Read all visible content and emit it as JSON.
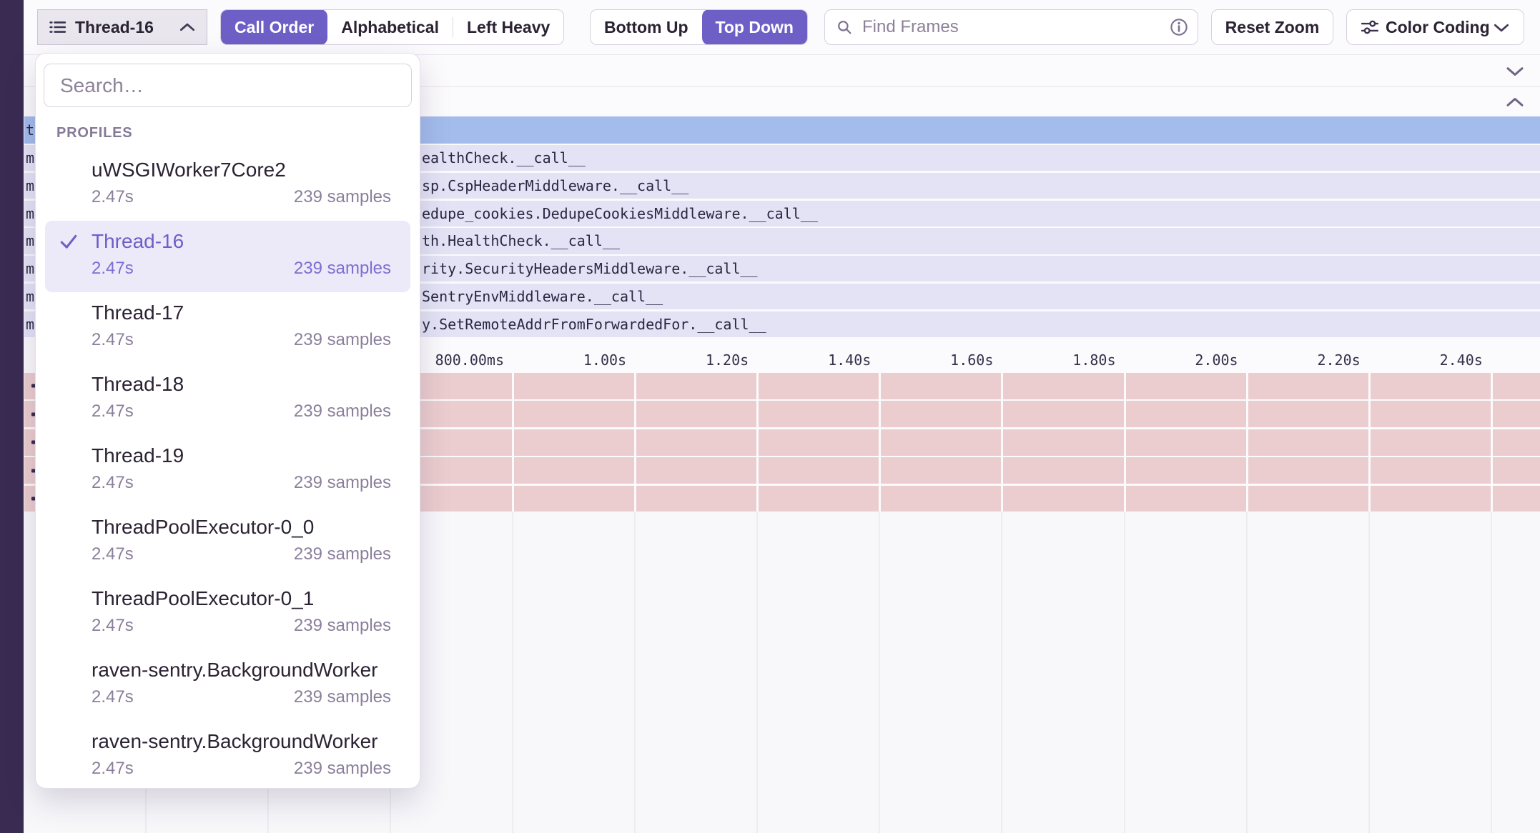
{
  "toolbar": {
    "thread_selector": {
      "label": "Thread-16",
      "icon": "list-icon",
      "chevron_icon": "chevron-up-icon"
    },
    "sort_control": {
      "options": [
        "Call Order",
        "Alphabetical",
        "Left Heavy"
      ],
      "selected": "Call Order"
    },
    "direction_control": {
      "options": [
        "Bottom Up",
        "Top Down"
      ],
      "selected": "Top Down"
    },
    "find_frames": {
      "placeholder": "Find Frames",
      "left_icon": "search-icon",
      "right_icon": "info-icon"
    },
    "reset_zoom_label": "Reset Zoom",
    "color_coding": {
      "label": "Color Coding",
      "icon": "sliders-icon",
      "chevron_icon": "chevron-down-icon"
    }
  },
  "section_headers": {
    "top_toggle_icon": "chevron-down-icon",
    "bottom_toggle_icon": "chevron-up-icon"
  },
  "profiles_dropdown": {
    "search_placeholder": "Search…",
    "section_label": "PROFILES",
    "items": [
      {
        "name": "uWSGIWorker7Core2",
        "duration": "2.47s",
        "samples": "239 samples",
        "selected": false
      },
      {
        "name": "Thread-16",
        "duration": "2.47s",
        "samples": "239 samples",
        "selected": true
      },
      {
        "name": "Thread-17",
        "duration": "2.47s",
        "samples": "239 samples",
        "selected": false
      },
      {
        "name": "Thread-18",
        "duration": "2.47s",
        "samples": "239 samples",
        "selected": false
      },
      {
        "name": "Thread-19",
        "duration": "2.47s",
        "samples": "239 samples",
        "selected": false
      },
      {
        "name": "ThreadPoolExecutor-0_0",
        "duration": "2.47s",
        "samples": "239 samples",
        "selected": false
      },
      {
        "name": "ThreadPoolExecutor-0_1",
        "duration": "2.47s",
        "samples": "239 samples",
        "selected": false
      },
      {
        "name": "raven-sentry.BackgroundWorker",
        "duration": "2.47s",
        "samples": "239 samples",
        "selected": false
      },
      {
        "name": "raven-sentry.BackgroundWorker",
        "duration": "2.47s",
        "samples": "239 samples",
        "selected": false
      }
    ]
  },
  "flamegraph": {
    "selected_frame_visible_prefix": "t",
    "frame_rows": [
      {
        "prefix": "m",
        "label": "ealthCheck.__call__"
      },
      {
        "prefix": "m",
        "label": "sp.CspHeaderMiddleware.__call__"
      },
      {
        "prefix": "m",
        "label": "edupe_cookies.DedupeCookiesMiddleware.__call__"
      },
      {
        "prefix": "m",
        "label": "th.HealthCheck.__call__"
      },
      {
        "prefix": "m",
        "label": "rity.SecurityHeadersMiddleware.__call__"
      },
      {
        "prefix": "m",
        "label": "SentryEnvMiddleware.__call__"
      },
      {
        "prefix": "m",
        "label": "y.SetRemoteAddrFromForwardedFor.__call__"
      }
    ],
    "time_axis": {
      "ticks": [
        "800.00ms",
        "1.00s",
        "1.20s",
        "1.40s",
        "1.60s",
        "1.80s",
        "2.00s",
        "2.20s",
        "2.40s"
      ]
    },
    "sample_track_row_count": 5
  },
  "colors": {
    "accent_purple": "#6e5fc7",
    "selected_frame_blue": "#a3bcec",
    "frame_row_lavender": "#e4e3f6",
    "sample_track_pink": "#ebcdcf",
    "sidebar_dark": "#3a2b52"
  }
}
